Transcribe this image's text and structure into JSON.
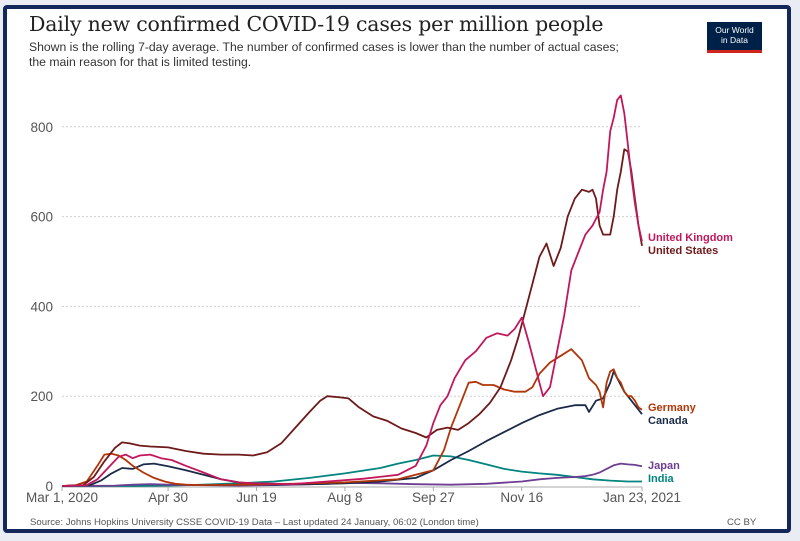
{
  "chart_data": {
    "type": "line",
    "title": "Daily new confirmed COVID-19 cases per million people",
    "subtitle": "Shown is the rolling 7-day average. The number of confirmed cases is lower than the number of actual cases; the main reason for that is limited testing.",
    "source": "Source: Johns Hopkins University CSSE COVID-19 Data – Last updated 24 January, 06:02 (London time)",
    "license": "CC BY",
    "logo": [
      "Our World",
      "in Data"
    ],
    "xlabel": "",
    "ylabel": "",
    "x_unit": "days since Mar 1, 2020",
    "xlim": [
      0,
      328
    ],
    "ylim": [
      0,
      880
    ],
    "grid": true,
    "legend": "right (inline labels at line ends)",
    "yticks": [
      {
        "value": 0,
        "label": "0"
      },
      {
        "value": 200,
        "label": "200"
      },
      {
        "value": 400,
        "label": "400"
      },
      {
        "value": 600,
        "label": "600"
      },
      {
        "value": 800,
        "label": "800"
      }
    ],
    "xticks": [
      {
        "value": 0,
        "label": "Mar 1, 2020"
      },
      {
        "value": 60,
        "label": "Apr 30"
      },
      {
        "value": 110,
        "label": "Jun 19"
      },
      {
        "value": 160,
        "label": "Aug 8"
      },
      {
        "value": 210,
        "label": "Sep 27"
      },
      {
        "value": 260,
        "label": "Nov 16"
      },
      {
        "value": 328,
        "label": "Jan 23, 2021"
      }
    ],
    "series": [
      {
        "name": "United States",
        "label": "United States",
        "color": "#6e1a1a",
        "x": [
          0,
          12,
          18,
          24,
          30,
          34,
          38,
          44,
          50,
          60,
          70,
          80,
          90,
          100,
          108,
          116,
          124,
          132,
          140,
          146,
          150,
          156,
          162,
          168,
          176,
          184,
          192,
          200,
          206,
          212,
          218,
          224,
          230,
          236,
          242,
          248,
          254,
          258,
          262,
          266,
          270,
          274,
          278,
          282,
          286,
          290,
          294,
          298,
          300,
          302,
          304,
          306,
          310,
          312,
          314,
          316,
          318,
          320,
          322,
          324,
          326,
          328
        ],
        "y": [
          0,
          2,
          20,
          55,
          85,
          97,
          95,
          90,
          88,
          86,
          78,
          72,
          70,
          70,
          68,
          75,
          95,
          130,
          165,
          190,
          200,
          198,
          195,
          175,
          155,
          145,
          128,
          118,
          108,
          125,
          130,
          125,
          140,
          160,
          185,
          220,
          280,
          330,
          390,
          450,
          510,
          540,
          490,
          530,
          600,
          640,
          660,
          655,
          660,
          640,
          580,
          560,
          560,
          600,
          660,
          700,
          750,
          745,
          700,
          640,
          580,
          535
        ]
      },
      {
        "name": "United Kingdom",
        "label": "United Kingdom",
        "color": "#c2185b",
        "x": [
          0,
          14,
          20,
          26,
          32,
          36,
          40,
          44,
          50,
          56,
          62,
          70,
          80,
          90,
          100,
          110,
          130,
          150,
          170,
          190,
          200,
          206,
          210,
          214,
          218,
          222,
          228,
          234,
          240,
          246,
          252,
          256,
          260,
          264,
          268,
          272,
          276,
          280,
          284,
          288,
          292,
          296,
          300,
          304,
          306,
          308,
          310,
          312,
          314,
          316,
          318,
          320,
          322,
          324,
          326,
          328
        ],
        "y": [
          0,
          2,
          15,
          40,
          65,
          70,
          62,
          68,
          70,
          62,
          58,
          45,
          30,
          15,
          8,
          6,
          4,
          10,
          16,
          25,
          45,
          90,
          140,
          180,
          200,
          240,
          280,
          300,
          330,
          340,
          335,
          350,
          375,
          320,
          260,
          200,
          220,
          300,
          380,
          480,
          520,
          560,
          580,
          610,
          660,
          700,
          790,
          820,
          860,
          870,
          830,
          760,
          690,
          630,
          580,
          545
        ]
      },
      {
        "name": "Germany",
        "label": "Germany",
        "color": "#b13507",
        "x": [
          0,
          8,
          14,
          20,
          24,
          28,
          32,
          36,
          40,
          46,
          52,
          58,
          64,
          70,
          80,
          100,
          130,
          160,
          190,
          210,
          216,
          220,
          226,
          230,
          234,
          238,
          244,
          250,
          256,
          262,
          266,
          270,
          276,
          282,
          288,
          294,
          298,
          302,
          304,
          306,
          308,
          310,
          312,
          314,
          316,
          318,
          320,
          322,
          324,
          326,
          328
        ],
        "y": [
          0,
          2,
          10,
          45,
          70,
          72,
          68,
          58,
          45,
          30,
          18,
          10,
          5,
          3,
          2,
          3,
          5,
          8,
          15,
          35,
          80,
          130,
          190,
          230,
          232,
          225,
          225,
          215,
          210,
          210,
          220,
          250,
          275,
          290,
          305,
          280,
          240,
          225,
          210,
          175,
          230,
          255,
          260,
          240,
          230,
          210,
          200,
          200,
          190,
          175,
          170
        ]
      },
      {
        "name": "Canada",
        "label": "Canada",
        "color": "#1b2a49",
        "x": [
          0,
          16,
          22,
          28,
          34,
          40,
          46,
          52,
          60,
          70,
          80,
          90,
          100,
          110,
          120,
          140,
          160,
          180,
          200,
          210,
          220,
          230,
          240,
          250,
          260,
          270,
          280,
          290,
          296,
          298,
          302,
          306,
          310,
          312,
          314,
          318,
          322,
          326,
          328
        ],
        "y": [
          0,
          2,
          12,
          28,
          40,
          38,
          48,
          50,
          44,
          35,
          25,
          15,
          8,
          4,
          3,
          4,
          6,
          10,
          18,
          35,
          58,
          78,
          100,
          120,
          140,
          158,
          172,
          180,
          180,
          165,
          190,
          195,
          230,
          255,
          240,
          210,
          190,
          170,
          160
        ]
      },
      {
        "name": "Japan",
        "label": "Japan",
        "color": "#6d3e91",
        "x": [
          0,
          30,
          40,
          50,
          60,
          100,
          120,
          140,
          150,
          160,
          180,
          200,
          220,
          240,
          260,
          270,
          280,
          290,
          296,
          300,
          304,
          308,
          312,
          316,
          320,
          324,
          328
        ],
        "y": [
          0,
          1,
          3,
          4,
          3,
          1,
          2,
          4,
          5,
          7,
          6,
          4,
          3,
          5,
          10,
          15,
          18,
          20,
          22,
          25,
          30,
          38,
          46,
          50,
          48,
          47,
          44
        ]
      },
      {
        "name": "India",
        "label": "India",
        "color": "#00847e",
        "x": [
          0,
          40,
          60,
          80,
          100,
          120,
          140,
          160,
          180,
          190,
          200,
          210,
          220,
          230,
          240,
          250,
          260,
          270,
          280,
          290,
          300,
          310,
          320,
          328
        ],
        "y": [
          0,
          0,
          1,
          3,
          6,
          10,
          18,
          28,
          40,
          50,
          58,
          68,
          66,
          58,
          48,
          38,
          32,
          28,
          25,
          20,
          15,
          12,
          10,
          10
        ]
      }
    ]
  }
}
